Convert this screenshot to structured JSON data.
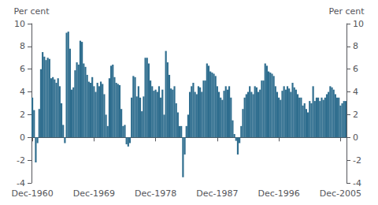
{
  "chart_data": {
    "type": "bar",
    "color": "#2e6d8e",
    "ylabel": "Per cent",
    "y2label": "Per cent",
    "ylim": [
      -4,
      10
    ],
    "yticks": [
      -4,
      -2,
      0,
      2,
      4,
      6,
      8,
      10
    ],
    "y2lim": [
      -4,
      10
    ],
    "y2ticks": [
      -4,
      -2,
      0,
      2,
      4,
      6,
      8,
      10
    ],
    "grid": false,
    "categories": [
      "Dec-1960",
      null,
      null,
      null,
      null,
      null,
      null,
      null,
      null,
      null,
      null,
      null,
      null,
      null,
      null,
      null,
      null,
      null,
      null,
      null,
      null,
      null,
      null,
      null,
      null,
      null,
      null,
      null,
      null,
      null,
      null,
      null,
      null,
      null,
      null,
      null,
      "Dec-1969",
      null,
      null,
      null,
      null,
      null,
      null,
      null,
      null,
      null,
      null,
      null,
      null,
      null,
      null,
      null,
      null,
      null,
      null,
      null,
      null,
      null,
      null,
      null,
      null,
      null,
      null,
      null,
      null,
      null,
      null,
      null,
      null,
      null,
      null,
      null,
      "Dec-1978",
      null,
      null,
      null,
      null,
      null,
      null,
      null,
      null,
      null,
      null,
      null,
      null,
      null,
      null,
      null,
      null,
      null,
      null,
      null,
      null,
      null,
      null,
      null,
      null,
      null,
      null,
      null,
      null,
      null,
      null,
      null,
      null,
      null,
      null,
      null,
      "Dec-1987",
      null,
      null,
      null,
      null,
      null,
      null,
      null,
      null,
      null,
      null,
      null,
      null,
      null,
      null,
      null,
      null,
      null,
      null,
      null,
      null,
      null,
      null,
      null,
      null,
      null,
      null,
      null,
      null,
      null,
      null,
      null,
      null,
      null,
      null,
      null,
      "Dec-1996",
      null,
      null,
      null,
      null,
      null,
      null,
      null,
      null,
      null,
      null,
      null,
      null,
      null,
      null,
      null,
      null,
      null,
      null,
      null,
      null,
      null,
      null,
      null,
      null,
      null,
      null,
      null,
      null,
      null,
      null,
      null,
      null,
      null,
      null,
      null,
      "Dec-2005",
      null,
      null,
      null
    ],
    "values": [
      3.5,
      2.4,
      -2.2,
      -0.5,
      2.5,
      6.0,
      7.5,
      7.1,
      6.8,
      7.0,
      6.9,
      5.2,
      5.3,
      5.1,
      4.8,
      5.2,
      4.5,
      3.0,
      1.1,
      -0.5,
      9.2,
      9.3,
      7.8,
      4.2,
      4.4,
      5.9,
      6.6,
      6.4,
      8.5,
      8.4,
      6.5,
      6.2,
      5.5,
      4.9,
      4.8,
      5.3,
      4.5,
      4.0,
      4.8,
      4.5,
      4.9,
      4.7,
      3.8,
      2.0,
      1.0,
      5.2,
      6.3,
      6.4,
      5.3,
      4.8,
      4.7,
      4.6,
      2.5,
      1.0,
      1.1,
      -0.6,
      -0.8,
      -0.5,
      3.5,
      5.4,
      5.3,
      3.6,
      4.5,
      3.5,
      2.3,
      3.6,
      7.0,
      7.0,
      6.5,
      5.0,
      4.5,
      4.1,
      4.2,
      4.0,
      4.5,
      3.5,
      4.2,
      2.0,
      7.6,
      6.6,
      5.5,
      4.3,
      4.2,
      4.5,
      3.0,
      2.2,
      1.0,
      1.0,
      -3.5,
      -1.5,
      1.0,
      2.0,
      4.0,
      4.5,
      4.8,
      4.0,
      3.8,
      4.5,
      4.4,
      4.0,
      5.0,
      5.0,
      6.5,
      6.3,
      5.8,
      5.7,
      5.6,
      5.4,
      4.5,
      4.0,
      3.5,
      3.3,
      4.1,
      4.5,
      4.2,
      4.5,
      3.5,
      1.5,
      0.3,
      -0.3,
      -1.5,
      -0.5,
      1.0,
      2.5,
      3.5,
      3.8,
      4.0,
      4.5,
      4.0,
      3.8,
      4.5,
      4.4,
      4.0,
      4.2,
      5.0,
      5.0,
      6.5,
      6.3,
      5.8,
      5.7,
      5.6,
      5.4,
      4.5,
      4.0,
      3.5,
      3.3,
      4.1,
      4.5,
      4.2,
      4.5,
      4.3,
      4.0,
      4.8,
      4.4,
      4.2,
      3.8,
      3.5,
      3.5,
      2.8,
      3.0,
      2.5,
      2.2,
      3.2,
      3.0,
      4.5,
      3.2,
      3.5,
      3.5,
      3.2,
      3.5,
      3.3,
      3.5,
      3.8,
      4.0,
      4.5,
      4.4,
      4.2,
      3.8,
      3.5,
      3.5,
      2.8,
      3.0,
      3.2,
      3.2
    ]
  }
}
